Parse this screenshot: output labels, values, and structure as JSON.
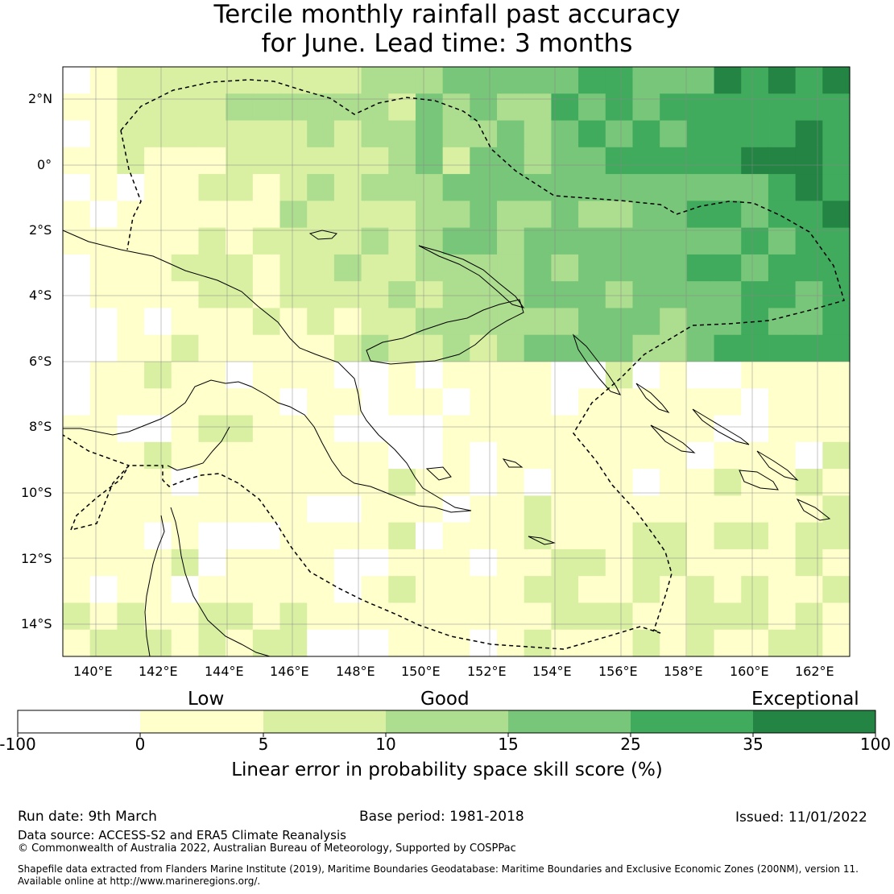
{
  "title_line1": "Tercile monthly rainfall past accuracy",
  "title_line2": "for June. Lead time: 3 months",
  "map": {
    "lat_labels": [
      "2°N",
      "0°",
      "2°S",
      "4°S",
      "6°S",
      "8°S",
      "10°S",
      "12°S",
      "14°S"
    ],
    "lon_labels": [
      "140°E",
      "142°E",
      "144°E",
      "146°E",
      "148°E",
      "150°E",
      "152°E",
      "154°E",
      "156°E",
      "158°E",
      "160°E",
      "162°E"
    ],
    "colors": {
      "neg": "#ffffff",
      "c0_5": "#ffffcc",
      "c5_10": "#d9f0a3",
      "c10_15": "#addd8e",
      "c15_25": "#78c679",
      "c25_35": "#41ab5d",
      "c35_100": "#238443"
    }
  },
  "colorbar": {
    "categories": [
      "Low",
      "Good",
      "Exceptional"
    ],
    "ticks": [
      "-100",
      "0",
      "5",
      "10",
      "15",
      "25",
      "35",
      "100"
    ],
    "label": "Linear error in probability space skill score (%)"
  },
  "footer": {
    "run_date": "Run date: 9th March",
    "base_period": "Base period: 1981-2018",
    "issued": "Issued: 11/01/2022",
    "data_source": "Data source: ACCESS-S2 and ERA5 Climate Reanalysis",
    "copyright": "© Commonwealth of Australia 2022, Australian Bureau of Meteorology, Supported by COSPPac",
    "shapefile_line1": "Shapefile data extracted from Flanders Marine Institute (2019), Maritime Boundaries Geodatabase: Maritime Boundaries and Exclusive Economic Zones (200NM), version 11.",
    "shapefile_line2": "Available online at http://www.marineregions.org/."
  }
}
